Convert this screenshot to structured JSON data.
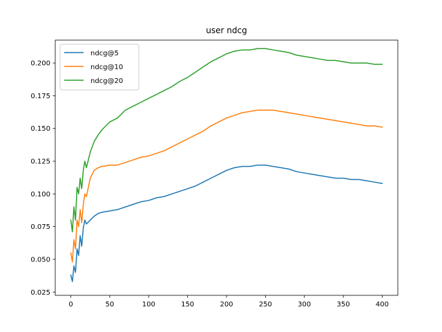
{
  "chart_data": {
    "type": "line",
    "title": "user ndcg",
    "xlabel": "",
    "ylabel": "",
    "xlim": [
      -20,
      420
    ],
    "ylim": [
      0.0225,
      0.2175
    ],
    "x_ticks": [
      0,
      50,
      100,
      150,
      200,
      250,
      300,
      350,
      400
    ],
    "y_ticks": [
      0.025,
      0.05,
      0.075,
      0.1,
      0.125,
      0.15,
      0.175,
      0.2
    ],
    "y_tick_labels": [
      "0.025",
      "0.050",
      "0.075",
      "0.100",
      "0.125",
      "0.150",
      "0.175",
      "0.200"
    ],
    "grid": false,
    "legend_position": "top-left",
    "x": [
      0,
      2,
      4,
      6,
      8,
      10,
      12,
      14,
      16,
      18,
      20,
      25,
      30,
      35,
      40,
      50,
      60,
      70,
      80,
      90,
      100,
      110,
      120,
      130,
      140,
      150,
      160,
      170,
      180,
      190,
      200,
      210,
      220,
      230,
      240,
      250,
      260,
      270,
      280,
      290,
      300,
      310,
      320,
      330,
      340,
      350,
      360,
      370,
      380,
      390,
      400
    ],
    "series": [
      {
        "name": "ndcg@5",
        "color": "#1f77b4",
        "values": [
          0.038,
          0.033,
          0.045,
          0.04,
          0.058,
          0.053,
          0.068,
          0.06,
          0.074,
          0.08,
          0.077,
          0.08,
          0.083,
          0.085,
          0.086,
          0.087,
          0.088,
          0.09,
          0.092,
          0.094,
          0.095,
          0.097,
          0.098,
          0.1,
          0.102,
          0.104,
          0.106,
          0.109,
          0.112,
          0.115,
          0.118,
          0.12,
          0.121,
          0.121,
          0.122,
          0.122,
          0.121,
          0.12,
          0.119,
          0.117,
          0.116,
          0.115,
          0.114,
          0.113,
          0.112,
          0.112,
          0.111,
          0.111,
          0.11,
          0.109,
          0.108
        ]
      },
      {
        "name": "ndcg@10",
        "color": "#ff7f0e",
        "values": [
          0.055,
          0.048,
          0.065,
          0.058,
          0.08,
          0.075,
          0.088,
          0.078,
          0.092,
          0.1,
          0.098,
          0.112,
          0.118,
          0.12,
          0.121,
          0.122,
          0.122,
          0.124,
          0.126,
          0.128,
          0.129,
          0.131,
          0.133,
          0.136,
          0.139,
          0.142,
          0.145,
          0.148,
          0.152,
          0.155,
          0.158,
          0.16,
          0.162,
          0.163,
          0.164,
          0.164,
          0.164,
          0.163,
          0.162,
          0.161,
          0.16,
          0.159,
          0.158,
          0.157,
          0.156,
          0.155,
          0.154,
          0.153,
          0.152,
          0.152,
          0.151
        ]
      },
      {
        "name": "ndcg@20",
        "color": "#2ca02c",
        "values": [
          0.08,
          0.071,
          0.09,
          0.08,
          0.105,
          0.1,
          0.112,
          0.104,
          0.118,
          0.125,
          0.12,
          0.132,
          0.14,
          0.145,
          0.149,
          0.155,
          0.158,
          0.164,
          0.167,
          0.17,
          0.173,
          0.176,
          0.179,
          0.182,
          0.186,
          0.189,
          0.193,
          0.197,
          0.201,
          0.204,
          0.207,
          0.209,
          0.21,
          0.21,
          0.211,
          0.211,
          0.21,
          0.209,
          0.208,
          0.206,
          0.205,
          0.204,
          0.203,
          0.202,
          0.202,
          0.201,
          0.2,
          0.2,
          0.2,
          0.199,
          0.199
        ]
      }
    ]
  }
}
